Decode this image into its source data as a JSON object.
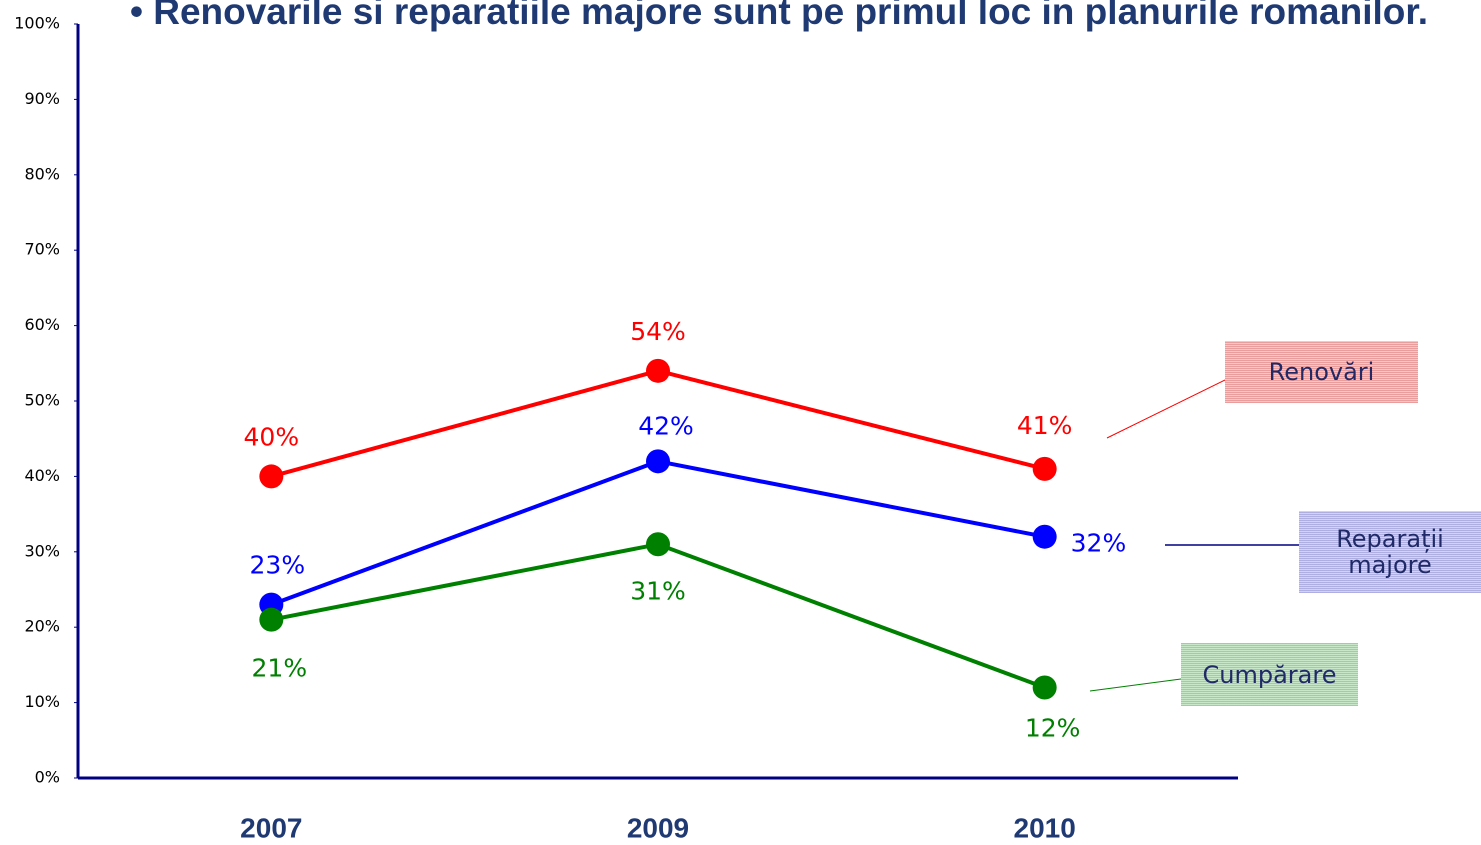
{
  "chart_data": {
    "type": "line",
    "title": "• Renovarile si reparatiile majore sunt pe primul loc in planurile romanilor.",
    "categories": [
      "2007",
      "2009",
      "2010"
    ],
    "series": [
      {
        "name": "Renovări",
        "color": "#ff0000",
        "values": [
          40,
          54,
          41
        ],
        "value_labels": [
          "40%",
          "54%",
          "41%"
        ]
      },
      {
        "name": "Reparații majore",
        "color": "#0000ff",
        "values": [
          23,
          42,
          32
        ],
        "value_labels": [
          "23%",
          "42%",
          "32%"
        ]
      },
      {
        "name": "Cumpărare",
        "color": "#008000",
        "values": [
          21,
          31,
          12
        ],
        "value_labels": [
          "21%",
          "31%",
          "12%"
        ]
      }
    ],
    "ylim": [
      0,
      100
    ],
    "yticks": [
      {
        "value": 0,
        "label": "0%"
      },
      {
        "value": 10,
        "label": "10%"
      },
      {
        "value": 20,
        "label": "20%"
      },
      {
        "value": 30,
        "label": "30%"
      },
      {
        "value": 40,
        "label": "40%"
      },
      {
        "value": 50,
        "label": "50%"
      },
      {
        "value": 60,
        "label": "60%"
      },
      {
        "value": 70,
        "label": "70%"
      },
      {
        "value": 80,
        "label": "80%"
      },
      {
        "value": 90,
        "label": "90%"
      },
      {
        "value": 100,
        "label": "100%"
      }
    ]
  }
}
